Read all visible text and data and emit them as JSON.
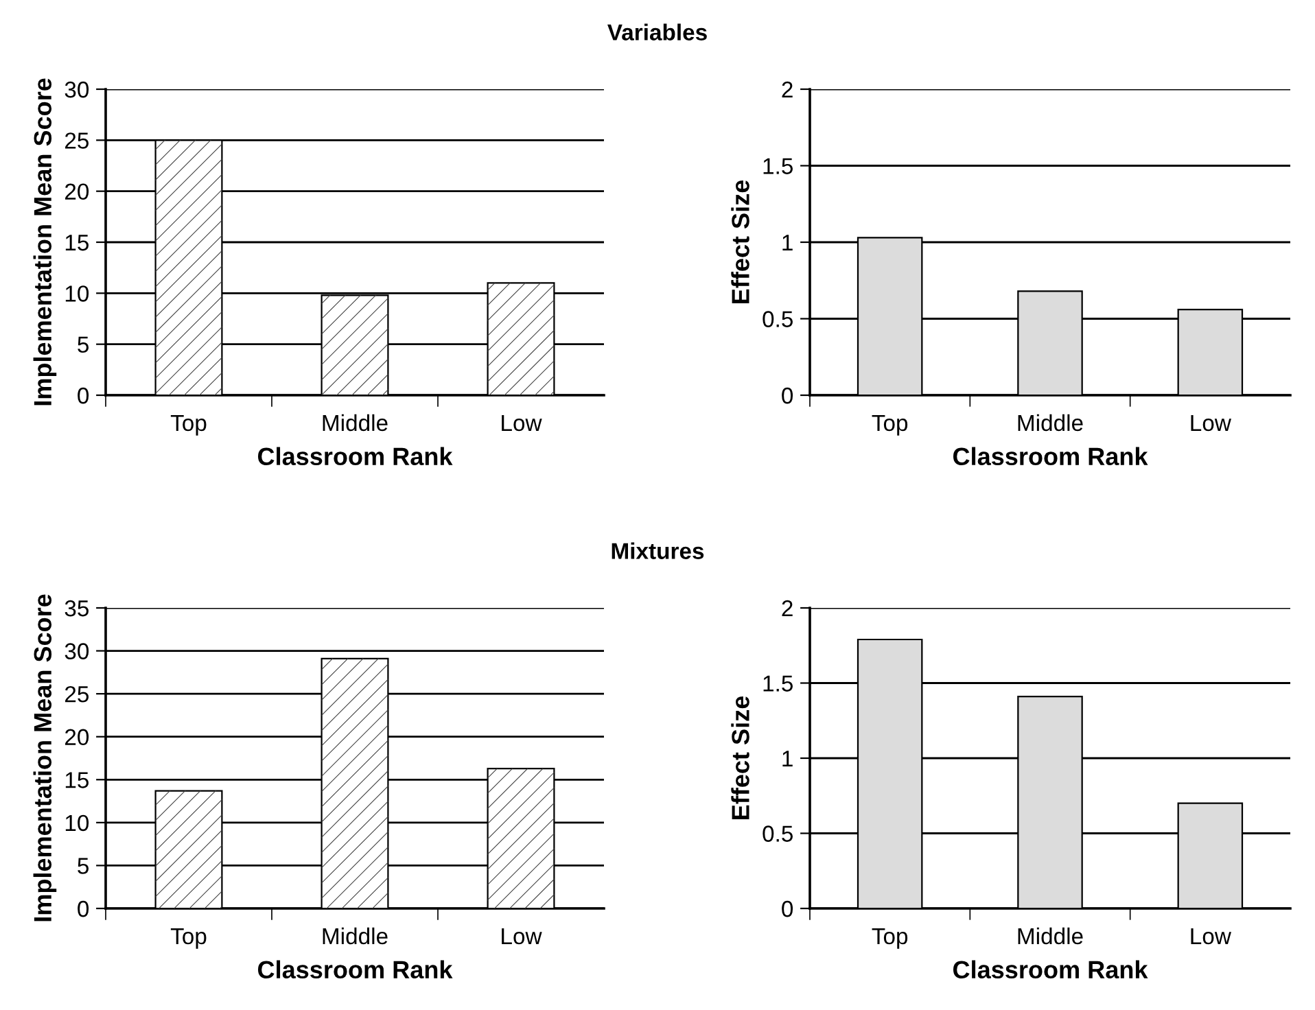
{
  "chart_data": [
    {
      "type": "bar",
      "title": "Variables",
      "xlabel": "Classroom Rank",
      "ylabel": "Implementation Mean Score",
      "categories": [
        "Top",
        "Middle",
        "Low"
      ],
      "values": [
        25,
        9.8,
        11
      ],
      "color": "#ffffff",
      "ylim": [
        0,
        30
      ],
      "yticks": [
        0,
        5,
        10,
        15,
        20,
        25,
        30
      ],
      "grid": "y"
    },
    {
      "type": "bar",
      "xlabel": "Classroom Rank",
      "ylabel": "Effect Size",
      "categories": [
        "Top",
        "Middle",
        "Low"
      ],
      "values": [
        1.03,
        0.68,
        0.56
      ],
      "color": "#dcdcdc",
      "ylim": [
        0,
        2
      ],
      "yticks": [
        0,
        0.5,
        1,
        1.5,
        2
      ],
      "grid": "y"
    },
    {
      "type": "bar",
      "title": "Mixtures",
      "xlabel": "Classroom Rank",
      "ylabel": "Implementation Mean Score",
      "categories": [
        "Top",
        "Middle",
        "Low"
      ],
      "values": [
        13.7,
        29.1,
        16.3
      ],
      "color": "#ffffff",
      "ylim": [
        0,
        35
      ],
      "yticks": [
        0,
        5,
        10,
        15,
        20,
        25,
        30,
        35
      ],
      "grid": "y"
    },
    {
      "type": "bar",
      "xlabel": "Classroom Rank",
      "ylabel": "Effect Size",
      "categories": [
        "Top",
        "Middle",
        "Low"
      ],
      "values": [
        1.79,
        1.41,
        0.7
      ],
      "color": "#dcdcdc",
      "ylim": [
        0,
        2
      ],
      "yticks": [
        0,
        0.5,
        1,
        1.5,
        2
      ],
      "grid": "y"
    }
  ]
}
